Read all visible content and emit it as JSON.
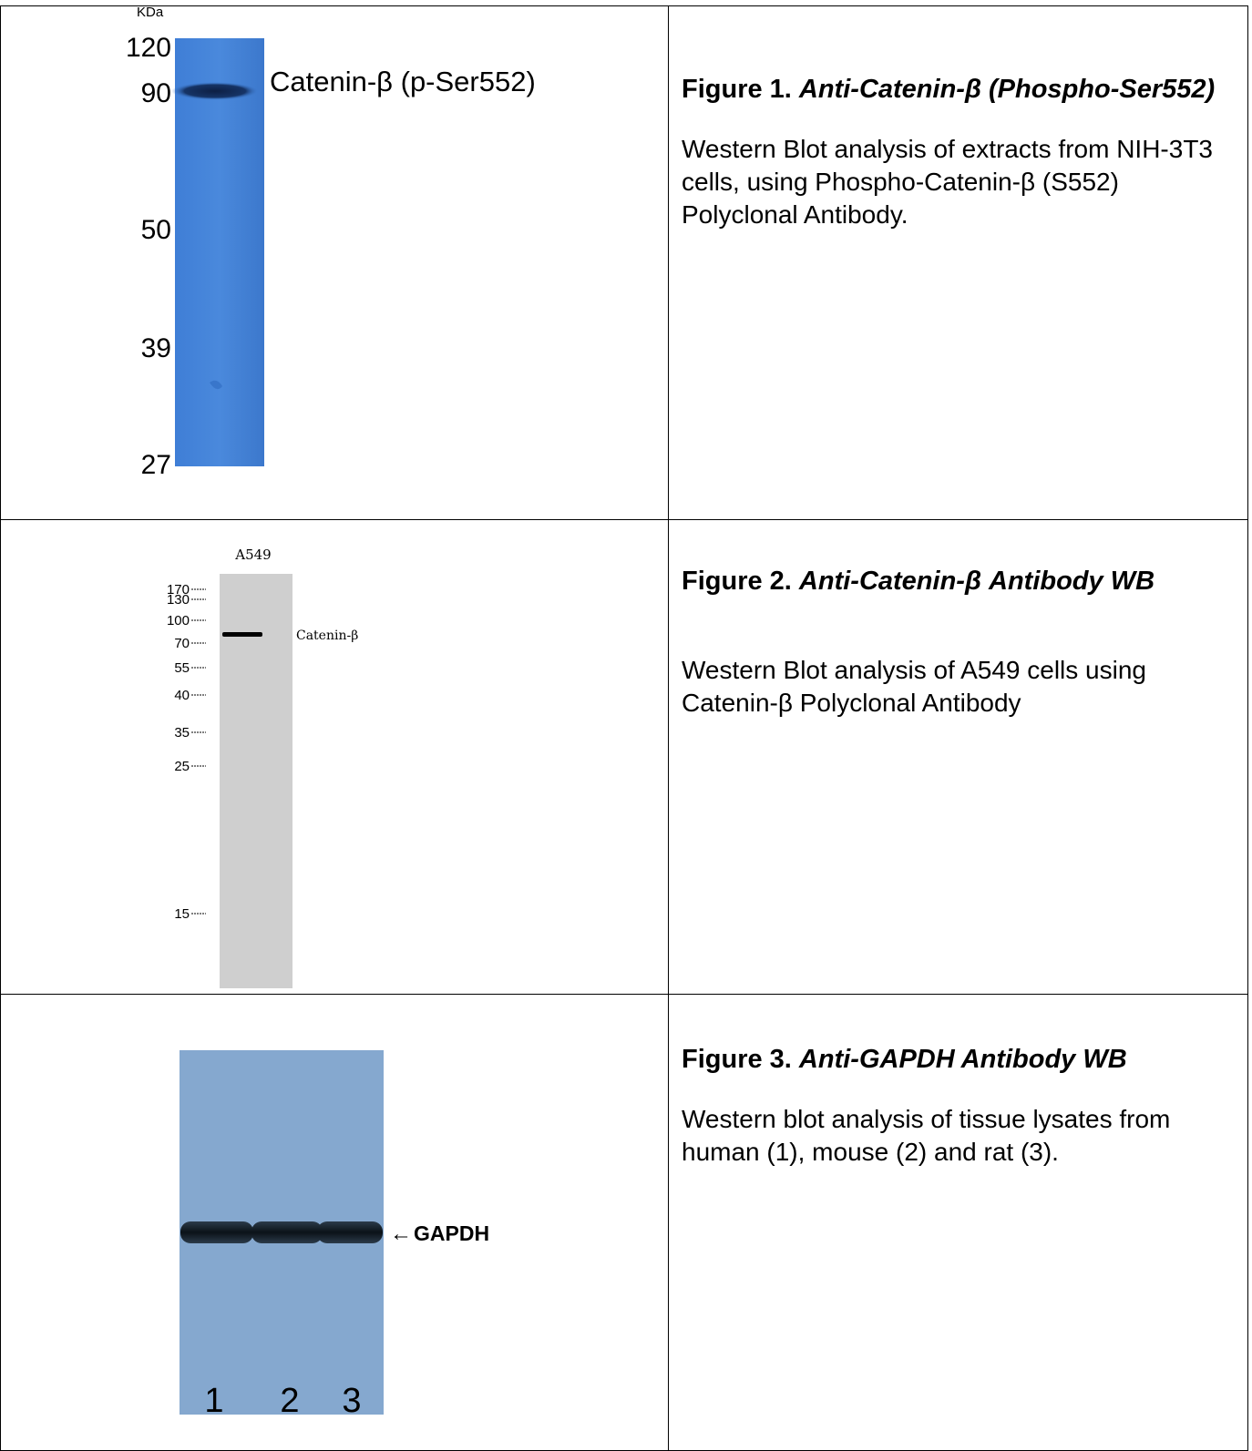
{
  "figure1": {
    "unit_label": "KDa",
    "markers": [
      "120",
      "90",
      "50",
      "39",
      "27"
    ],
    "band_label": "Catenin-β (p-Ser552)",
    "title_label": "Figure 1.",
    "title_name": "Anti-Catenin-β (Phospho-Ser552)",
    "description": "Western Blot analysis of extracts from NIH-3T3 cells, using Phospho-Catenin-β (S552) Polyclonal Antibody.",
    "colors": {
      "membrane": "#4a86d8",
      "band": "#122a55"
    }
  },
  "figure2": {
    "lane_label": "A549",
    "markers": [
      "170",
      "130",
      "100",
      "70",
      "55",
      "40",
      "35",
      "25",
      "15"
    ],
    "band_label": "Catenin-β",
    "title_label": "Figure 2.",
    "title_name": "Anti-Catenin-β Antibody WB",
    "description": "Western Blot analysis of A549 cells using Catenin-β Polyclonal Antibody",
    "colors": {
      "membrane": "#cfcfcf",
      "band": "#000000"
    }
  },
  "figure3": {
    "band_label": "GAPDH",
    "lanes": [
      "1",
      "2",
      "3"
    ],
    "title_label": "Figure 3.",
    "title_name": "Anti-GAPDH Antibody WB",
    "description": "Western blot analysis of tissue lysates from human (1), mouse (2) and rat (3).",
    "colors": {
      "membrane": "#85a8cf",
      "band": "#0f1a24"
    }
  }
}
